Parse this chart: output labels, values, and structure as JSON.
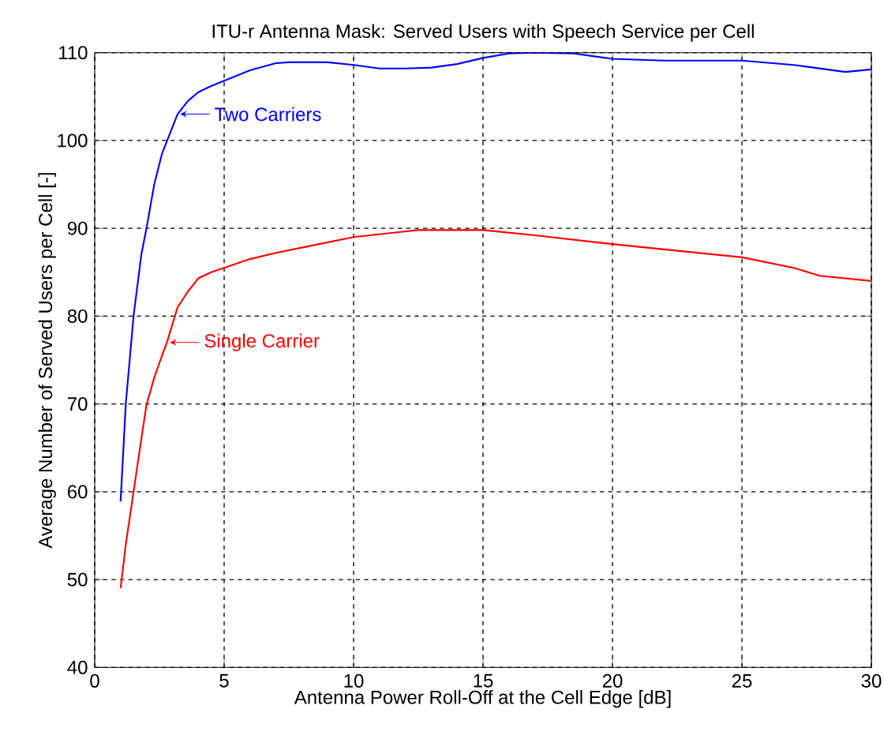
{
  "chart_data": {
    "type": "line",
    "title": "ITU-r Antenna Mask: Served Users with Speech Service per Cell",
    "xlabel": "Antenna Power Roll-Off at the Cell Edge [dB]",
    "ylabel": "Average Number of Served Users per Cell [-]",
    "series": [
      {
        "color": "#0000ff",
        "x": [
          1,
          1.2,
          1.5,
          1.8,
          2,
          2.3,
          2.6,
          2.8,
          3.2,
          3.6,
          4,
          4.5,
          5,
          6,
          7,
          7.5,
          9,
          10,
          11,
          12,
          13,
          14,
          15,
          16,
          17,
          18.5,
          20,
          22,
          25,
          27,
          29,
          30
        ],
        "values": [
          58.9,
          70,
          80,
          87,
          90,
          95,
          98.5,
          100,
          103,
          104.5,
          105.5,
          106.2,
          106.8,
          108,
          108.8,
          108.9,
          108.9,
          108.6,
          108.2,
          108.2,
          108.3,
          108.7,
          109.4,
          109.9,
          110,
          109.9,
          109.3,
          109.1,
          109.1,
          108.6,
          107.8,
          108.1
        ]
      },
      {
        "color": "#ff0000",
        "x": [
          1,
          1.2,
          1.5,
          1.8,
          2,
          2.3,
          2.6,
          2.8,
          3.2,
          3.6,
          4,
          4.5,
          5,
          6,
          7,
          8,
          10,
          12.5,
          15,
          17,
          20,
          22,
          25,
          27,
          28,
          30
        ],
        "values": [
          49,
          54,
          60,
          66,
          69.9,
          73,
          75.5,
          77.1,
          81,
          82.8,
          84.3,
          85,
          85.5,
          86.5,
          87.2,
          87.8,
          89,
          89.8,
          89.8,
          89.2,
          88.2,
          87.6,
          86.7,
          85.5,
          84.6,
          84
        ]
      }
    ],
    "annotations": [
      {
        "text": "Two Carriers",
        "x": 3.3,
        "y": 103
      },
      {
        "text": "Single Carrier",
        "x": 2.9,
        "y": 77
      }
    ],
    "xlim": [
      0,
      30
    ],
    "ylim": [
      40,
      110
    ],
    "xticks": [
      0,
      5,
      10,
      15,
      20,
      25,
      30
    ],
    "yticks": [
      40,
      50,
      60,
      70,
      80,
      90,
      100,
      110
    ],
    "grid": true
  }
}
